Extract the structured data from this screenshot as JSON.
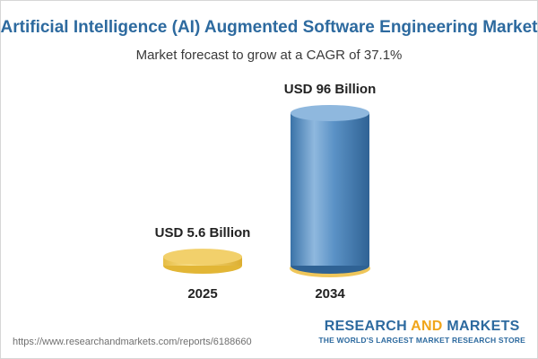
{
  "chart_data": {
    "type": "bar",
    "title": "Artificial Intelligence (AI) Augmented Software Engineering Market",
    "subtitle": "Market forecast to grow at a CAGR of 37.1%",
    "categories": [
      "2025",
      "2034"
    ],
    "values": [
      5.6,
      96
    ],
    "value_labels": [
      "USD 5.6 Billion",
      "USD 96 Billion"
    ],
    "unit": "USD Billion",
    "ylim": [
      0,
      96
    ],
    "grid": false,
    "legend": "none",
    "colors": {
      "bar_small": "#f2d06b",
      "bar_small_dark": "#e2b636",
      "bar_large": "#4a86bd",
      "bar_large_light": "#8fb8de",
      "bar_large_dark": "#2f6294",
      "base_ring": "#efc65a"
    }
  },
  "footer": {
    "url": "https://www.researchandmarkets.com/reports/6188660",
    "brand": {
      "word1": "RESEARCH",
      "word2": "AND",
      "word3": "MARKETS"
    },
    "tagline": "THE WORLD'S LARGEST MARKET RESEARCH STORE"
  },
  "colors": {
    "title": "#2d6a9f",
    "subtitle": "#3a3a3a",
    "brand_blue": "#2d6a9f",
    "brand_orange": "#f0a51a"
  }
}
